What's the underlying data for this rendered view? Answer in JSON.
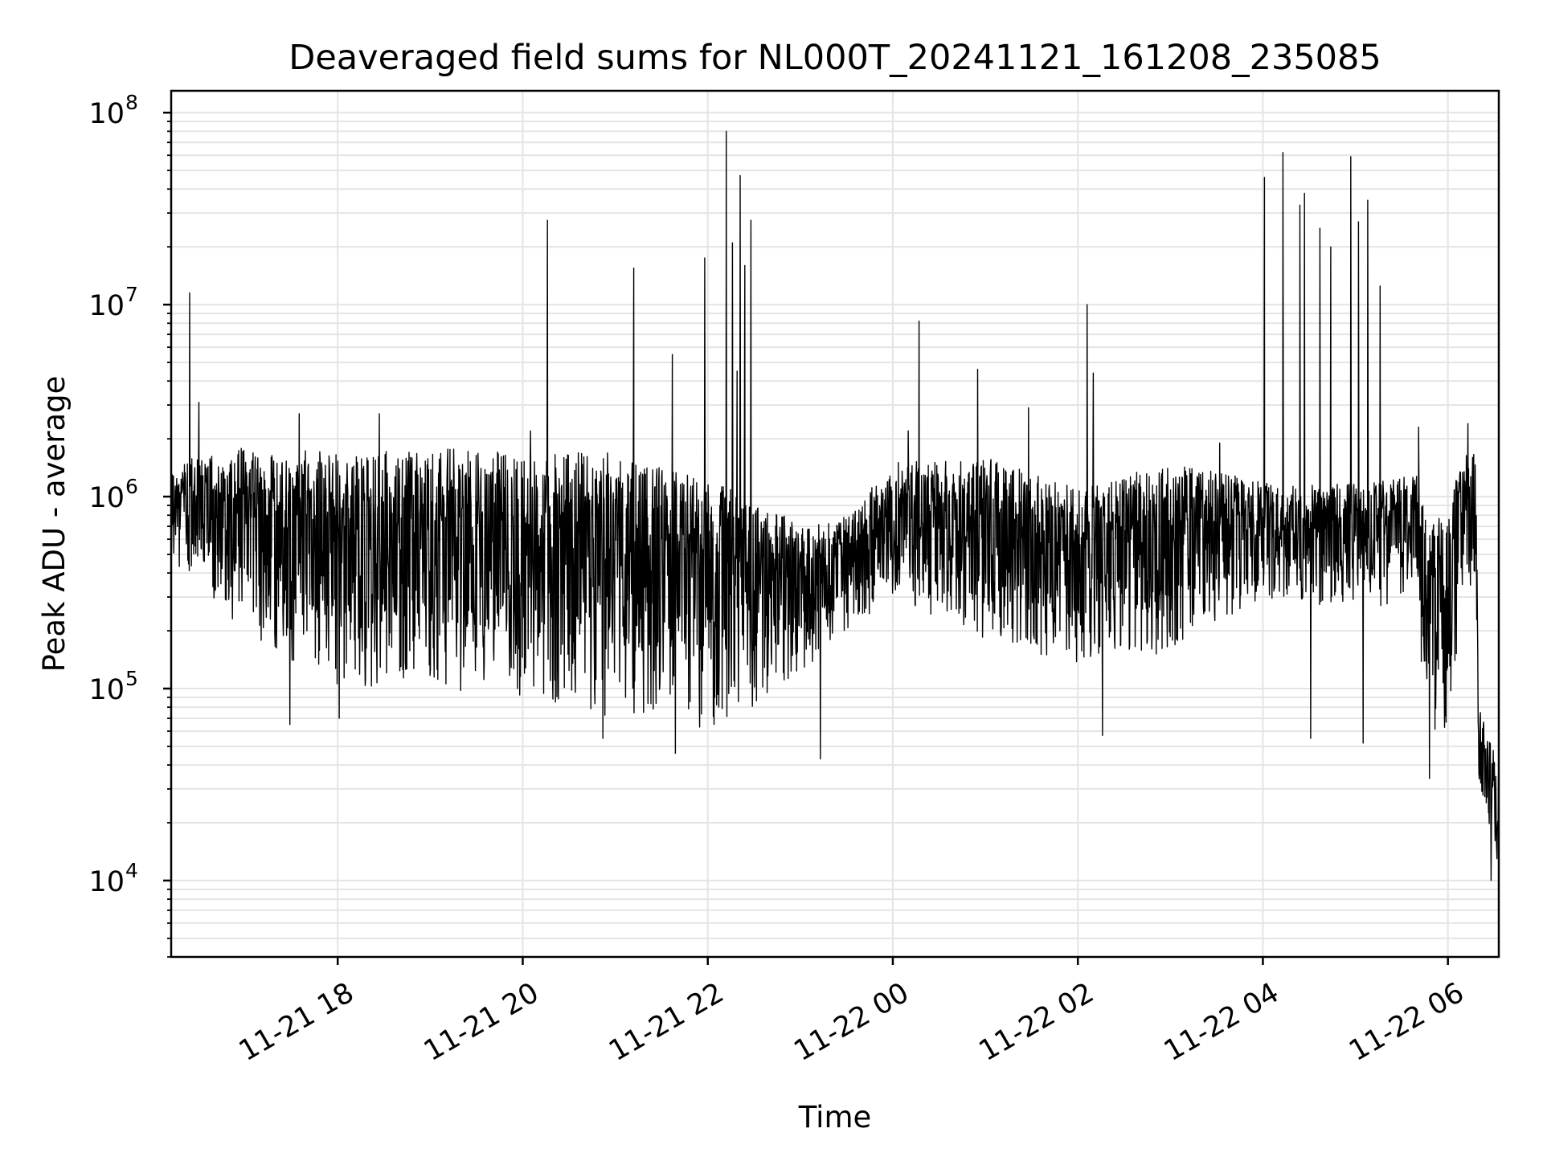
{
  "chart_data": {
    "type": "line",
    "title": "Deaveraged field sums for NL000T_20241121_161208_235085",
    "xlabel": "Time",
    "ylabel": "Peak ADU - average",
    "yscale": "log",
    "grid": true,
    "xlim": [
      "2024-11-21 16:12",
      "2024-11-22 06:33"
    ],
    "ylim": [
      4000,
      130000000
    ],
    "x_ticks": [
      {
        "value": "2024-11-21 18:00",
        "label": "11-21 18"
      },
      {
        "value": "2024-11-21 20:00",
        "label": "11-21 20"
      },
      {
        "value": "2024-11-21 22:00",
        "label": "11-21 22"
      },
      {
        "value": "2024-11-22 00:00",
        "label": "11-22 00"
      },
      {
        "value": "2024-11-22 02:00",
        "label": "11-22 02"
      },
      {
        "value": "2024-11-22 04:00",
        "label": "11-22 04"
      },
      {
        "value": "2024-11-22 06:00",
        "label": "11-22 06"
      }
    ],
    "y_ticks": [
      {
        "value": 10000,
        "base": "10",
        "exp": "4"
      },
      {
        "value": 100000,
        "base": "10",
        "exp": "5"
      },
      {
        "value": 1000000,
        "base": "10",
        "exp": "6"
      },
      {
        "value": 10000000,
        "base": "10",
        "exp": "7"
      },
      {
        "value": 100000000,
        "base": "10",
        "exp": "8"
      }
    ],
    "series_color": "#000000",
    "envelope": [
      {
        "x": "2024-11-21 16:12",
        "low": 450000,
        "high": 1500000
      },
      {
        "x": "2024-11-21 17:00",
        "low": 200000,
        "high": 1800000
      },
      {
        "x": "2024-11-21 18:00",
        "low": 100000,
        "high": 1700000
      },
      {
        "x": "2024-11-21 19:00",
        "low": 100000,
        "high": 1800000
      },
      {
        "x": "2024-11-21 20:00",
        "low": 90000,
        "high": 1700000
      },
      {
        "x": "2024-11-21 21:00",
        "low": 70000,
        "high": 1700000
      },
      {
        "x": "2024-11-21 22:00",
        "low": 60000,
        "high": 1200000
      },
      {
        "x": "2024-11-21 22:30",
        "low": 80000,
        "high": 1000000
      },
      {
        "x": "2024-11-21 23:00",
        "low": 120000,
        "high": 700000
      },
      {
        "x": "2024-11-21 23:30",
        "low": 200000,
        "high": 800000
      },
      {
        "x": "2024-11-22 00:00",
        "low": 300000,
        "high": 1500000
      },
      {
        "x": "2024-11-22 01:00",
        "low": 180000,
        "high": 1600000
      },
      {
        "x": "2024-11-22 02:00",
        "low": 130000,
        "high": 1100000
      },
      {
        "x": "2024-11-22 03:00",
        "low": 150000,
        "high": 1500000
      },
      {
        "x": "2024-11-22 04:00",
        "low": 300000,
        "high": 1200000
      },
      {
        "x": "2024-11-22 05:00",
        "low": 250000,
        "high": 1200000
      },
      {
        "x": "2024-11-22 05:40",
        "low": 300000,
        "high": 1300000
      },
      {
        "x": "2024-11-22 05:45",
        "low": 60000,
        "high": 800000
      },
      {
        "x": "2024-11-22 06:00",
        "low": 60000,
        "high": 800000
      },
      {
        "x": "2024-11-22 06:10",
        "low": 300000,
        "high": 1800000
      },
      {
        "x": "2024-11-22 06:18",
        "low": 300000,
        "high": 1800000
      },
      {
        "x": "2024-11-22 06:20",
        "low": 25000,
        "high": 80000
      },
      {
        "x": "2024-11-22 06:33",
        "low": 12000,
        "high": 40000
      }
    ],
    "spikes": [
      {
        "x": "2024-11-21 16:24",
        "y": 11500000
      },
      {
        "x": "2024-11-21 16:30",
        "y": 3100000
      },
      {
        "x": "2024-11-21 17:35",
        "y": 2700000
      },
      {
        "x": "2024-11-21 18:27",
        "y": 2700000
      },
      {
        "x": "2024-11-21 20:05",
        "y": 2200000
      },
      {
        "x": "2024-11-21 20:16",
        "y": 27500000
      },
      {
        "x": "2024-11-21 21:12",
        "y": 15500000
      },
      {
        "x": "2024-11-21 21:37",
        "y": 5500000
      },
      {
        "x": "2024-11-21 21:58",
        "y": 17500000
      },
      {
        "x": "2024-11-21 22:12",
        "y": 80000000
      },
      {
        "x": "2024-11-21 22:16",
        "y": 21000000
      },
      {
        "x": "2024-11-21 22:19",
        "y": 4500000
      },
      {
        "x": "2024-11-21 22:21",
        "y": 47000000
      },
      {
        "x": "2024-11-21 22:24",
        "y": 16000000
      },
      {
        "x": "2024-11-21 22:28",
        "y": 27500000
      },
      {
        "x": "2024-11-22 00:10",
        "y": 2200000
      },
      {
        "x": "2024-11-22 00:17",
        "y": 8200000
      },
      {
        "x": "2024-11-22 00:55",
        "y": 4600000
      },
      {
        "x": "2024-11-22 01:28",
        "y": 2900000
      },
      {
        "x": "2024-11-22 02:06",
        "y": 10000000
      },
      {
        "x": "2024-11-22 02:10",
        "y": 4400000
      },
      {
        "x": "2024-11-22 03:32",
        "y": 1900000
      },
      {
        "x": "2024-11-22 04:01",
        "y": 46000000
      },
      {
        "x": "2024-11-22 04:13",
        "y": 62000000
      },
      {
        "x": "2024-11-22 04:24",
        "y": 33000000
      },
      {
        "x": "2024-11-22 04:27",
        "y": 38000000
      },
      {
        "x": "2024-11-22 04:37",
        "y": 25000000
      },
      {
        "x": "2024-11-22 04:44",
        "y": 20000000
      },
      {
        "x": "2024-11-22 04:57",
        "y": 59000000
      },
      {
        "x": "2024-11-22 05:02",
        "y": 27000000
      },
      {
        "x": "2024-11-22 05:08",
        "y": 35000000
      },
      {
        "x": "2024-11-22 05:16",
        "y": 12500000
      },
      {
        "x": "2024-11-22 05:41",
        "y": 2300000
      },
      {
        "x": "2024-11-22 06:13",
        "y": 2400000
      }
    ],
    "dips": [
      {
        "x": "2024-11-21 17:29",
        "y": 65000
      },
      {
        "x": "2024-11-21 18:01",
        "y": 70000
      },
      {
        "x": "2024-11-21 20:52",
        "y": 55000
      },
      {
        "x": "2024-11-21 21:39",
        "y": 46000
      },
      {
        "x": "2024-11-21 23:13",
        "y": 43000
      },
      {
        "x": "2024-11-22 02:16",
        "y": 57000
      },
      {
        "x": "2024-11-22 04:31",
        "y": 55000
      },
      {
        "x": "2024-11-22 05:05",
        "y": 52000
      },
      {
        "x": "2024-11-22 05:48",
        "y": 34000
      },
      {
        "x": "2024-11-22 06:28",
        "y": 10000
      },
      {
        "x": "2024-11-22 06:33",
        "y": 9500
      }
    ]
  }
}
